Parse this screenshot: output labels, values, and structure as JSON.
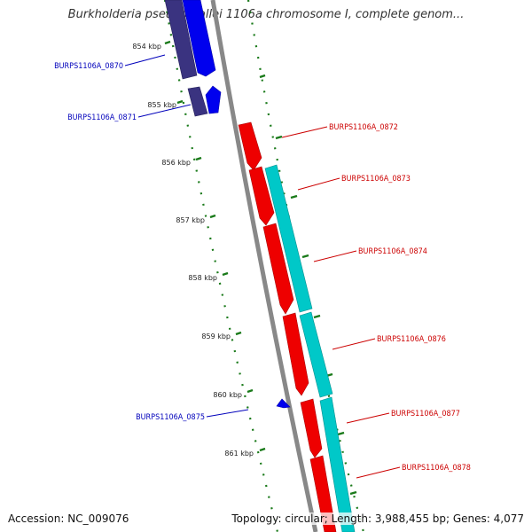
{
  "map": {
    "title": "Burkholderia pseudomallei 1106a chromosome I, complete genom...",
    "accession_label": "Accession: NC_009076",
    "summary_label": "Topology: circular; Length: 3,988,455 bp; Genes: 4,077"
  },
  "colors": {
    "backbone": "#8a8a8a",
    "forward_gene": "#0000ee",
    "forward_cds_shade": "#3a3380",
    "reverse_gene": "#ee0000",
    "reverse_cds_shade": "#00c8c8",
    "forward_label": "#0000bb",
    "reverse_label": "#cc0000",
    "ticks": "#1a7a1a"
  },
  "ticks": [
    {
      "label": "854 kbp"
    },
    {
      "label": "855 kbp"
    },
    {
      "label": "856 kbp"
    },
    {
      "label": "857 kbp"
    },
    {
      "label": "858 kbp"
    },
    {
      "label": "859 kbp"
    },
    {
      "label": "860 kbp"
    },
    {
      "label": "861 kbp"
    }
  ],
  "genes": [
    {
      "id": "BURPS1106A_0870",
      "strand": "forward"
    },
    {
      "id": "BURPS1106A_0871",
      "strand": "forward"
    },
    {
      "id": "BURPS1106A_0872",
      "strand": "reverse"
    },
    {
      "id": "BURPS1106A_0873",
      "strand": "reverse"
    },
    {
      "id": "BURPS1106A_0874",
      "strand": "reverse"
    },
    {
      "id": "BURPS1106A_0876",
      "strand": "reverse"
    },
    {
      "id": "BURPS1106A_0875",
      "strand": "forward"
    },
    {
      "id": "BURPS1106A_0877",
      "strand": "reverse"
    },
    {
      "id": "BURPS1106A_0878",
      "strand": "reverse"
    }
  ]
}
